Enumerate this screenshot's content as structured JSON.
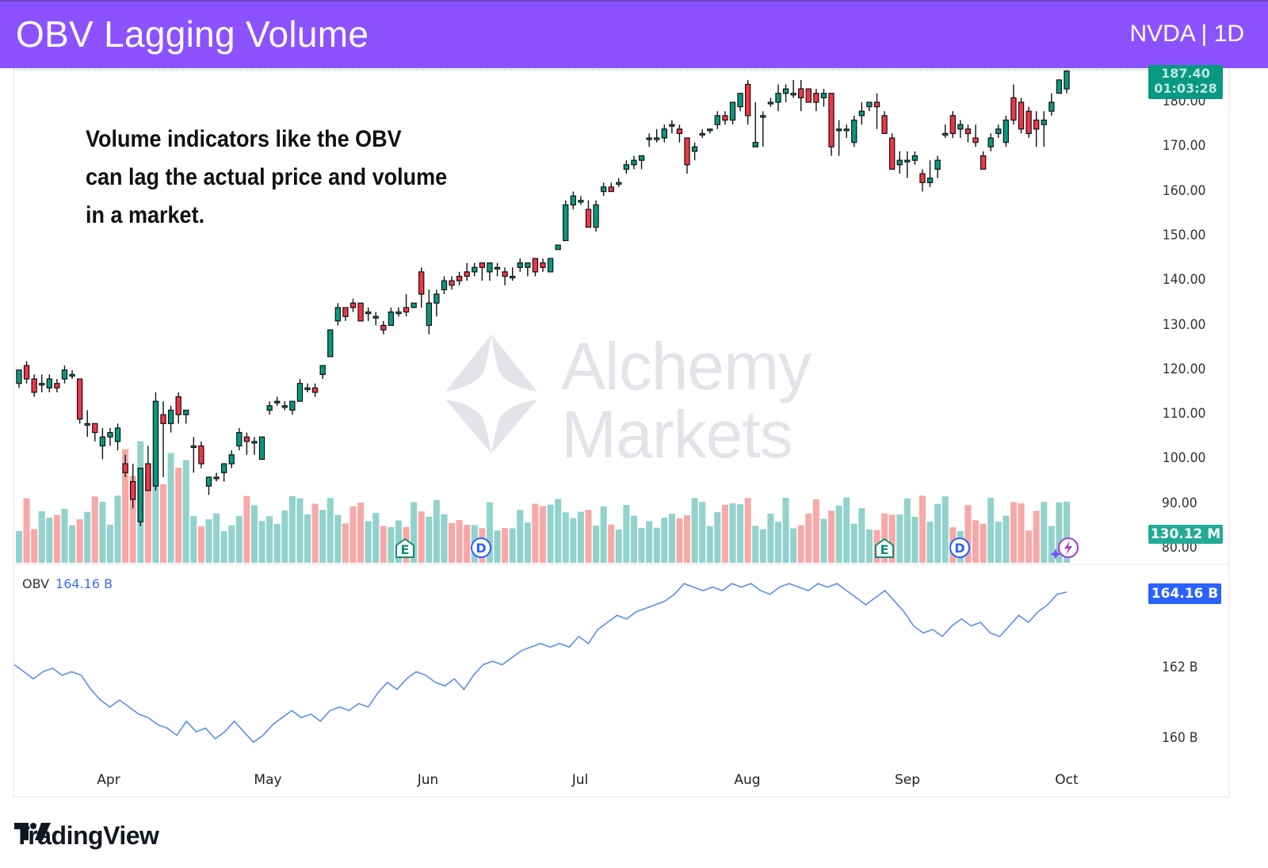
{
  "header": {
    "title": "OBV Lagging Volume",
    "symbol": "NVDA | 1D",
    "background": "#8c52ff"
  },
  "annotation": {
    "lines": [
      "Volume indicators like the OBV",
      "can lag the actual price and volume",
      "in a market."
    ]
  },
  "watermark": {
    "line1": "Alchemy",
    "line2": "Markets"
  },
  "price_axis": {
    "labels": [
      "180.00",
      "170.00",
      "160.00",
      "150.00",
      "140.00",
      "130.00",
      "120.00",
      "110.00",
      "100.00",
      "90.00",
      "80.00"
    ],
    "last_price": "187.40",
    "countdown": "01:03:28",
    "volume_badge": "130.12 M"
  },
  "obv_pane": {
    "label": "OBV",
    "value": "164.16 B",
    "axis_labels": [
      "162 B",
      "160 B"
    ],
    "badge": "164.16 B"
  },
  "time_axis": {
    "labels": [
      "Apr",
      "May",
      "Jun",
      "Jul",
      "Aug",
      "Sep",
      "Oct"
    ]
  },
  "event_markers": [
    {
      "type": "E",
      "label": "E"
    },
    {
      "type": "D",
      "label": "D"
    },
    {
      "type": "E",
      "label": "E"
    },
    {
      "type": "D",
      "label": "D"
    }
  ],
  "footer": {
    "brand": "TradingView"
  },
  "colors": {
    "up": "#089981",
    "down": "#f23645",
    "vol_up": "#92d2cc",
    "vol_down": "#f7a9a7",
    "obv_line": "#5b8def",
    "obv_badge": "#2962ff",
    "price_badge": "#089981"
  },
  "chart_data": {
    "type": "candlestick",
    "title": "OBV Lagging Volume",
    "symbol": "NVDA",
    "interval": "1D",
    "x_tick_labels": [
      "Apr",
      "May",
      "Jun",
      "Jul",
      "Aug",
      "Sep",
      "Oct"
    ],
    "y_tick_labels": [
      180,
      170,
      160,
      150,
      140,
      130,
      120,
      110,
      100,
      90,
      80
    ],
    "ylim": [
      80,
      188
    ],
    "last_price": 187.4,
    "last_volume": "130.12 M",
    "candles_ohlc": [
      [
        117,
        120,
        116,
        120
      ],
      [
        121,
        122,
        117,
        118
      ],
      [
        118,
        119,
        114,
        115
      ],
      [
        117,
        119,
        115,
        117
      ],
      [
        116,
        119,
        115,
        118
      ],
      [
        117,
        118,
        115,
        116
      ],
      [
        118,
        121,
        117,
        120
      ],
      [
        119,
        120,
        118,
        119
      ],
      [
        118,
        118,
        108,
        109
      ],
      [
        108,
        111,
        105,
        108
      ],
      [
        108,
        108,
        104,
        106
      ],
      [
        103,
        107,
        100,
        105
      ],
      [
        105,
        107,
        103,
        106
      ],
      [
        104,
        108,
        102,
        107
      ],
      [
        99,
        101,
        96,
        97
      ],
      [
        95,
        99,
        89,
        91
      ],
      [
        86,
        98,
        85,
        98
      ],
      [
        99,
        103,
        94,
        93
      ],
      [
        94,
        115,
        93,
        113
      ],
      [
        110,
        113,
        96,
        108
      ],
      [
        108,
        112,
        106,
        111
      ],
      [
        114,
        115,
        108,
        110
      ],
      [
        110,
        111,
        108,
        111
      ],
      [
        103,
        105,
        97,
        103
      ],
      [
        103,
        104,
        98,
        99
      ],
      [
        94,
        96,
        92,
        96
      ],
      [
        96,
        97,
        95,
        96
      ],
      [
        97,
        99,
        95,
        99
      ],
      [
        99,
        102,
        98,
        101
      ],
      [
        103,
        107,
        102,
        106
      ],
      [
        105,
        106,
        101,
        104
      ],
      [
        104,
        105,
        101,
        104
      ],
      [
        100,
        105,
        100,
        105
      ],
      [
        111,
        113,
        110,
        112
      ],
      [
        113,
        114,
        112,
        113
      ],
      [
        112,
        113,
        111,
        112
      ],
      [
        111,
        113,
        110,
        113
      ],
      [
        113,
        118,
        113,
        117
      ],
      [
        116,
        117,
        115,
        116
      ],
      [
        116,
        117,
        114,
        115
      ],
      [
        119,
        121,
        118,
        121
      ],
      [
        123,
        129,
        123,
        129
      ],
      [
        131,
        135,
        130,
        134
      ],
      [
        134,
        134,
        131,
        132
      ],
      [
        135,
        136,
        133,
        134
      ],
      [
        135,
        135,
        131,
        131
      ],
      [
        133,
        134,
        131,
        133
      ],
      [
        132,
        133,
        130,
        132
      ],
      [
        130,
        131,
        128,
        129
      ],
      [
        130,
        134,
        130,
        133
      ],
      [
        133,
        134,
        132,
        133
      ],
      [
        134,
        137,
        132,
        133
      ],
      [
        134,
        135,
        134,
        135
      ],
      [
        142,
        143,
        134,
        137
      ],
      [
        130,
        138,
        128,
        135
      ],
      [
        135,
        138,
        132,
        137
      ],
      [
        138,
        141,
        137,
        140
      ],
      [
        140,
        141,
        138,
        139
      ],
      [
        141,
        142,
        139,
        140
      ],
      [
        142,
        144,
        140,
        141
      ],
      [
        142,
        144,
        141,
        143
      ],
      [
        144,
        144,
        140,
        143
      ],
      [
        142,
        144,
        140,
        144
      ],
      [
        143,
        144,
        141,
        143
      ],
      [
        142,
        143,
        139,
        141
      ],
      [
        141,
        143,
        140,
        141
      ],
      [
        143,
        145,
        142,
        144
      ],
      [
        143,
        144,
        141,
        144
      ],
      [
        145,
        145,
        141,
        142
      ],
      [
        144,
        145,
        142,
        143
      ],
      [
        142,
        144,
        142,
        145
      ],
      [
        147,
        148,
        147,
        148
      ],
      [
        149,
        158,
        149,
        157
      ],
      [
        157,
        160,
        156,
        159
      ],
      [
        158,
        159,
        157,
        158
      ],
      [
        156,
        158,
        152,
        152
      ],
      [
        152,
        158,
        151,
        157
      ],
      [
        160,
        162,
        159,
        161
      ],
      [
        161,
        162,
        160,
        160
      ],
      [
        162,
        163,
        161,
        162
      ],
      [
        165,
        167,
        164,
        166
      ],
      [
        166,
        168,
        165,
        167
      ],
      [
        167,
        168,
        165,
        168
      ],
      [
        172,
        173,
        170,
        172
      ],
      [
        172,
        174,
        171,
        172
      ],
      [
        172,
        175,
        171,
        174
      ],
      [
        175,
        176,
        173,
        175
      ],
      [
        174,
        175,
        171,
        173
      ],
      [
        172,
        172,
        164,
        166
      ],
      [
        169,
        171,
        167,
        170
      ],
      [
        173,
        174,
        172,
        173
      ],
      [
        174,
        174,
        173,
        174
      ],
      [
        175,
        178,
        174,
        177
      ],
      [
        177,
        178,
        175,
        176
      ],
      [
        176,
        180,
        175,
        180
      ],
      [
        179,
        182,
        178,
        182
      ],
      [
        184,
        185,
        175,
        177
      ],
      [
        170,
        180,
        170,
        171
      ],
      [
        177,
        178,
        170,
        177
      ],
      [
        180,
        181,
        179,
        180
      ],
      [
        180,
        184,
        178,
        182
      ],
      [
        182,
        184,
        180,
        183
      ],
      [
        182,
        185,
        181,
        182
      ],
      [
        183,
        185,
        178,
        181
      ],
      [
        183,
        182,
        180,
        180
      ],
      [
        182,
        183,
        178,
        180
      ],
      [
        181,
        183,
        179,
        182
      ],
      [
        182,
        181,
        168,
        170
      ],
      [
        174,
        176,
        168,
        174
      ],
      [
        174,
        175,
        172,
        174
      ],
      [
        171,
        177,
        170,
        176
      ],
      [
        177,
        180,
        175,
        178
      ],
      [
        179,
        180,
        178,
        180
      ],
      [
        180,
        182,
        174,
        179
      ],
      [
        177,
        178,
        173,
        173
      ],
      [
        172,
        173,
        165,
        165
      ],
      [
        166,
        169,
        164,
        167
      ],
      [
        167,
        169,
        163,
        167
      ],
      [
        167,
        169,
        166,
        168
      ],
      [
        164,
        165,
        160,
        162
      ],
      [
        162,
        167,
        161,
        163
      ],
      [
        165,
        168,
        163,
        167
      ],
      [
        173,
        175,
        172,
        173
      ],
      [
        177,
        178,
        172,
        173
      ],
      [
        174,
        176,
        172,
        175
      ],
      [
        174,
        175,
        171,
        173
      ],
      [
        172,
        175,
        170,
        171
      ],
      [
        168,
        169,
        165,
        165
      ],
      [
        170,
        173,
        169,
        172
      ],
      [
        173,
        175,
        172,
        174
      ],
      [
        171,
        177,
        170,
        176
      ],
      [
        181,
        184,
        175,
        176
      ],
      [
        180,
        181,
        173,
        174
      ],
      [
        178,
        179,
        172,
        173
      ],
      [
        176,
        178,
        170,
        174
      ],
      [
        175,
        178,
        170,
        176
      ],
      [
        178,
        182,
        177,
        180
      ],
      [
        182,
        184,
        182,
        185
      ],
      [
        183,
        186,
        182,
        187
      ]
    ],
    "obv_series_billion": [
      162.1,
      161.9,
      161.7,
      161.9,
      162.0,
      161.8,
      161.9,
      161.8,
      161.4,
      161.1,
      160.9,
      161.1,
      160.9,
      160.7,
      160.6,
      160.4,
      160.3,
      160.1,
      160.5,
      160.2,
      160.3,
      160.0,
      160.2,
      160.5,
      160.2,
      159.9,
      160.1,
      160.4,
      160.6,
      160.8,
      160.6,
      160.7,
      160.5,
      160.8,
      160.9,
      160.8,
      161.0,
      160.9,
      161.3,
      161.6,
      161.4,
      161.7,
      161.9,
      161.8,
      161.6,
      161.5,
      161.7,
      161.4,
      161.8,
      162.1,
      162.2,
      162.1,
      162.3,
      162.5,
      162.6,
      162.7,
      162.6,
      162.7,
      162.6,
      162.9,
      162.7,
      163.1,
      163.3,
      163.5,
      163.4,
      163.6,
      163.7,
      163.8,
      163.9,
      164.1,
      164.4,
      164.3,
      164.2,
      164.3,
      164.2,
      164.4,
      164.3,
      164.4,
      164.2,
      164.1,
      164.3,
      164.4,
      164.3,
      164.2,
      164.4,
      164.3,
      164.4,
      164.2,
      164.0,
      163.8,
      164.0,
      164.2,
      163.9,
      163.6,
      163.2,
      163.0,
      163.1,
      162.9,
      163.2,
      163.4,
      163.2,
      163.3,
      163.0,
      162.9,
      163.2,
      163.5,
      163.3,
      163.6,
      163.8,
      164.1,
      164.16
    ],
    "obv_ylim": [
      159.7,
      164.6
    ],
    "obv_ticks": [
      "162 B",
      "160 B"
    ]
  }
}
